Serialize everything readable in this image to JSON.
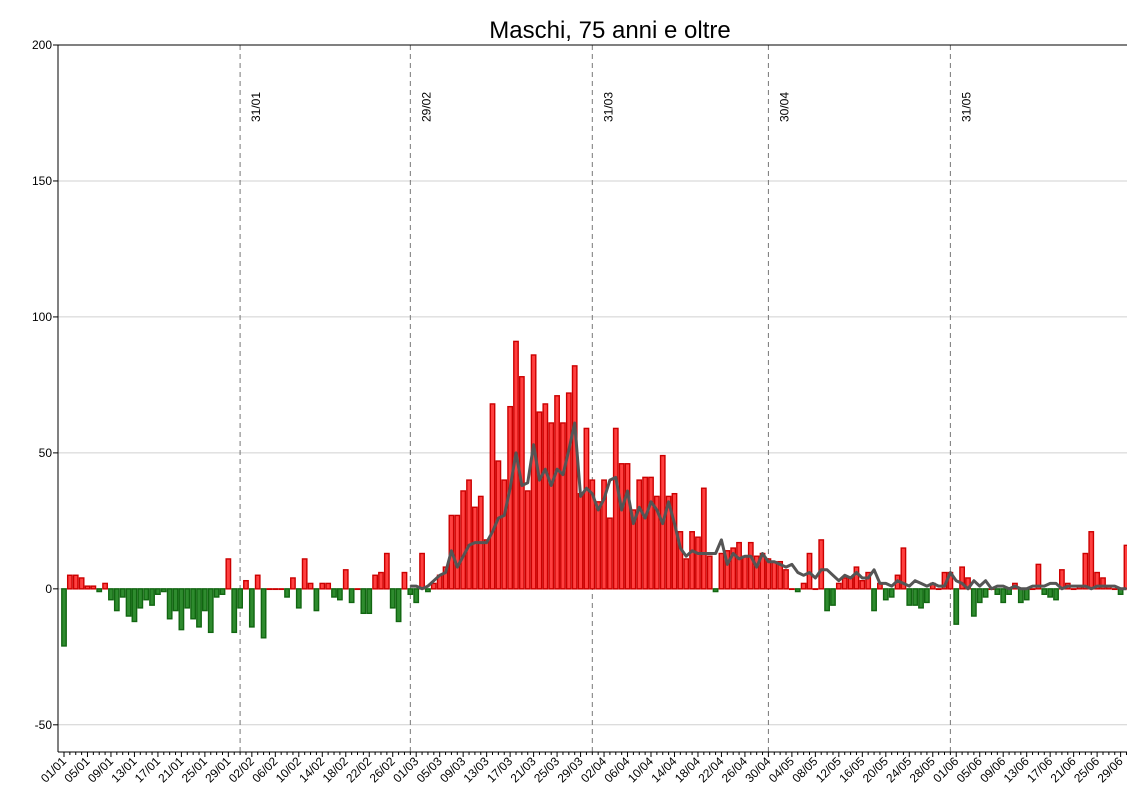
{
  "chart_data": {
    "type": "bar",
    "title": "Maschi, 75 anni e oltre",
    "categories": [
      "01/01",
      null,
      null,
      null,
      "05/01",
      null,
      null,
      null,
      "09/01",
      null,
      null,
      null,
      "13/01",
      null,
      null,
      null,
      "17/01",
      null,
      null,
      null,
      "21/01",
      null,
      null,
      null,
      "25/01",
      null,
      null,
      null,
      "29/01",
      null,
      null,
      null,
      "02/02",
      null,
      null,
      null,
      "06/02",
      null,
      null,
      null,
      "10/02",
      null,
      null,
      null,
      "14/02",
      null,
      null,
      null,
      "18/02",
      null,
      null,
      null,
      "22/02",
      null,
      null,
      null,
      "26/02",
      null,
      null,
      null,
      "01/03",
      null,
      null,
      null,
      "05/03",
      null,
      null,
      null,
      "09/03",
      null,
      null,
      null,
      "13/03",
      null,
      null,
      null,
      "17/03",
      null,
      null,
      null,
      "21/03",
      null,
      null,
      null,
      "25/03",
      null,
      null,
      null,
      "29/03",
      null,
      null,
      null,
      "02/04",
      null,
      null,
      null,
      "06/04",
      null,
      null,
      null,
      "10/04",
      null,
      null,
      null,
      "14/04",
      null,
      null,
      null,
      "18/04",
      null,
      null,
      null,
      "22/04",
      null,
      null,
      null,
      "26/04",
      null,
      null,
      null,
      "30/04",
      null,
      null,
      null,
      "04/05",
      null,
      null,
      null,
      "08/05",
      null,
      null,
      null,
      "12/05",
      null,
      null,
      null,
      "16/05",
      null,
      null,
      null,
      "20/05",
      null,
      null,
      null,
      "24/05",
      null,
      null,
      null,
      "28/05",
      null,
      null,
      null,
      "01/06",
      null,
      null,
      null,
      "05/06",
      null,
      null,
      null,
      "09/06",
      null,
      null,
      null,
      "13/06",
      null,
      null,
      null,
      "17/06",
      null,
      null,
      null,
      "21/06",
      null,
      null,
      null,
      "25/06",
      null,
      null,
      null,
      "29/06",
      null
    ],
    "values": [
      -21,
      5,
      5,
      4,
      1,
      1,
      -1,
      2,
      -4,
      -8,
      -3,
      -10,
      -12,
      -7,
      -4,
      -6,
      -2,
      -1,
      -11,
      -8,
      -15,
      -7,
      -11,
      -14,
      -8,
      -16,
      -3,
      -2,
      11,
      -16,
      -7,
      3,
      -14,
      5,
      -18,
      0,
      0,
      0,
      -3,
      4,
      -7,
      11,
      2,
      -8,
      2,
      2,
      -3,
      -4,
      7,
      -5,
      0,
      -9,
      -9,
      5,
      6,
      13,
      -7,
      -12,
      6,
      -2,
      -5,
      13,
      -1,
      2,
      5,
      8,
      27,
      27,
      36,
      40,
      30,
      34,
      18,
      68,
      47,
      40,
      67,
      91,
      78,
      36,
      86,
      65,
      68,
      61,
      71,
      61,
      72,
      82,
      35,
      59,
      40,
      32,
      40,
      26,
      59,
      46,
      46,
      29,
      40,
      41,
      41,
      34,
      49,
      34,
      35,
      21,
      11,
      21,
      19,
      37,
      12,
      -1,
      13,
      14,
      15,
      17,
      12,
      17,
      12,
      13,
      11,
      10,
      10,
      7,
      0,
      -1,
      2,
      13,
      0,
      18,
      -8,
      -6,
      2,
      4,
      4,
      8,
      3,
      6,
      -8,
      2,
      -4,
      -3,
      5,
      15,
      -6,
      -6,
      -7,
      -5,
      2,
      0,
      6,
      6,
      -13,
      8,
      4,
      -10,
      -5,
      -3,
      0,
      -2,
      -5,
      -2,
      2,
      -5,
      -4,
      0,
      9,
      -2,
      -3,
      -4,
      7,
      2,
      0,
      1,
      13,
      21,
      6,
      4,
      1,
      0,
      -2,
      16
    ],
    "positive_color": "#ff4040",
    "positive_edge": "#cc0000",
    "negative_color": "#2e8b2e",
    "negative_edge": "#116611",
    "line": {
      "color": "#555555",
      "values": [
        null,
        null,
        null,
        null,
        null,
        null,
        null,
        null,
        null,
        null,
        null,
        null,
        null,
        null,
        null,
        null,
        null,
        null,
        null,
        null,
        null,
        null,
        null,
        null,
        null,
        null,
        null,
        null,
        null,
        null,
        null,
        null,
        null,
        null,
        null,
        null,
        null,
        null,
        null,
        null,
        null,
        null,
        null,
        null,
        null,
        null,
        null,
        null,
        null,
        null,
        null,
        null,
        null,
        null,
        null,
        null,
        null,
        null,
        null,
        1,
        1,
        0,
        1,
        3,
        5,
        6,
        14,
        8,
        12,
        16,
        17,
        17,
        17,
        21,
        26,
        27,
        37,
        50,
        38,
        39,
        53,
        40,
        44,
        38,
        44,
        42,
        51,
        61,
        34,
        37,
        35,
        29,
        33,
        40,
        41,
        29,
        36,
        24,
        30,
        26,
        32,
        29,
        24,
        32,
        24,
        15,
        12,
        14,
        13,
        13,
        13,
        13,
        18,
        9,
        13,
        11,
        12,
        12,
        8,
        13,
        10,
        10,
        9,
        8,
        9,
        6,
        5,
        6,
        4,
        7,
        7,
        5,
        3,
        5,
        4,
        6,
        4,
        4,
        7,
        2,
        2,
        1,
        3,
        2,
        1,
        3,
        2,
        1,
        2,
        1,
        1,
        6,
        3,
        2,
        0,
        3,
        1,
        3,
        0,
        1,
        1,
        0,
        1,
        0,
        0,
        1,
        1,
        1,
        2,
        2,
        0,
        1,
        1,
        1,
        1,
        0,
        1,
        1,
        1,
        1,
        0,
        0
      ]
    },
    "vlines": [
      {
        "index": 30,
        "label": "31/01"
      },
      {
        "index": 59,
        "label": "29/02"
      },
      {
        "index": 90,
        "label": "31/03"
      },
      {
        "index": 120,
        "label": "30/04"
      },
      {
        "index": 151,
        "label": "31/05"
      }
    ],
    "ylim": [
      -60,
      200
    ],
    "yticks": [
      -50,
      0,
      50,
      100,
      150,
      200
    ],
    "grid": true
  }
}
